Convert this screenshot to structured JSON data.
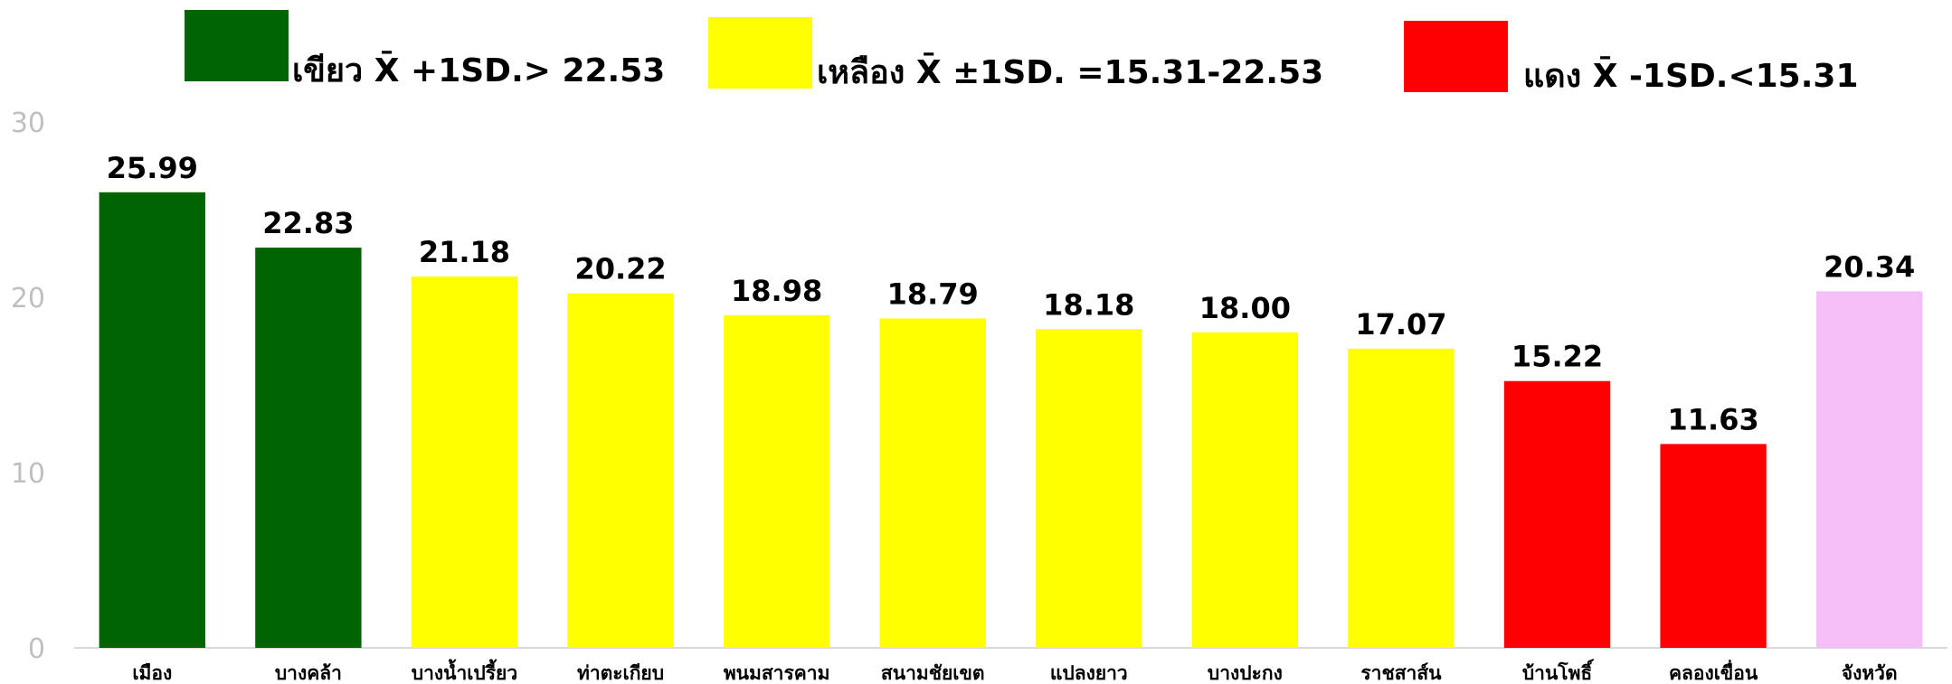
{
  "chart_data": {
    "type": "bar",
    "legend": [
      {
        "label": "เขียว X̄ +1SD.> 22.53",
        "color": "#006400"
      },
      {
        "label": "เหลือง X̄ ±1SD. =15.31-22.53",
        "color": "#ffff00"
      },
      {
        "label": "แดง X̄ -1SD.<15.31",
        "color": "#ff0000"
      }
    ],
    "categories": [
      "เมือง",
      "บางคล้า",
      "บางน้ำเปรี้ยว",
      "ท่าตะเกียบ",
      "พนมสารคาม",
      "สนามชัยเขต",
      "แปลงยาว",
      "บางปะกง",
      "ราชสาส์น",
      "บ้านโพธิ์",
      "คลองเขื่อน",
      "จังหวัด"
    ],
    "values": [
      25.99,
      22.83,
      21.18,
      20.22,
      18.98,
      18.79,
      18.18,
      18.0,
      17.07,
      15.22,
      11.63,
      20.34
    ],
    "value_labels": [
      "25.99",
      "22.83",
      "21.18",
      "20.22",
      "18.98",
      "18.79",
      "18.18",
      "18.00",
      "17.07",
      "15.22",
      "11.63",
      "20.34"
    ],
    "colors": [
      "#006400",
      "#006400",
      "#ffff00",
      "#ffff00",
      "#ffff00",
      "#ffff00",
      "#ffff00",
      "#ffff00",
      "#ffff00",
      "#ff0000",
      "#ff0000",
      "#f4bff7"
    ],
    "ylim": [
      0,
      30
    ],
    "yticks": [
      0,
      10,
      20,
      30
    ],
    "grid": false
  }
}
